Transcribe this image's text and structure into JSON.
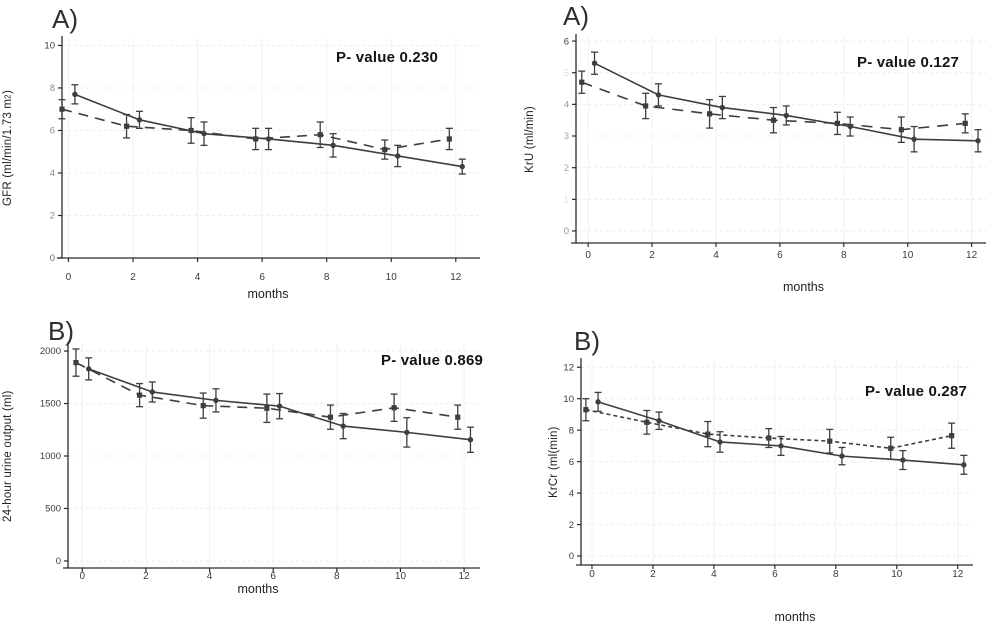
{
  "chart_data": [
    {
      "id": "gfr",
      "type": "line",
      "panel_label": "A)",
      "p_value": "P- value 0.230",
      "ylabel": {
        "text": "GFR (ml/min/1.73 m",
        "sup": "2",
        "after": ")"
      },
      "xlabel": "months",
      "xticks": [
        0,
        2,
        4,
        6,
        8,
        10,
        12
      ],
      "yticks": [
        10,
        8,
        6,
        4,
        2,
        0
      ],
      "ylim": [
        0,
        10
      ],
      "xlim_months": [
        0,
        12
      ],
      "grid": true,
      "legend": "none",
      "series": [
        {
          "name": "solid-line-group",
          "line_style": "solid",
          "marker": "circle",
          "x": [
            0.2,
            2.2,
            4.2,
            6.2,
            8.2,
            10.2,
            12.2
          ],
          "y": [
            7.7,
            6.5,
            5.85,
            5.6,
            5.3,
            4.8,
            4.3
          ],
          "err": [
            0.45,
            0.4,
            0.55,
            0.5,
            0.55,
            0.5,
            0.35
          ]
        },
        {
          "name": "dashed-line-group",
          "line_style": "dashed",
          "marker": "square",
          "x": [
            -0.2,
            1.8,
            3.8,
            5.8,
            7.8,
            9.8,
            11.8
          ],
          "y": [
            7.0,
            6.2,
            6.0,
            5.6,
            5.8,
            5.1,
            5.6
          ],
          "err": [
            0.45,
            0.55,
            0.6,
            0.5,
            0.6,
            0.45,
            0.5
          ]
        }
      ]
    },
    {
      "id": "kru",
      "type": "line",
      "panel_label": "A)",
      "p_value": "P- value 0.127",
      "ylabel": {
        "text": "KrU (ml/min)",
        "sup": "",
        "after": ""
      },
      "xlabel": "months",
      "xticks": [
        0,
        2,
        4,
        6,
        8,
        10,
        12
      ],
      "yticks": [
        6,
        5,
        4,
        3,
        2,
        1,
        0
      ],
      "ylim": [
        0,
        6
      ],
      "xlim_months": [
        0,
        12
      ],
      "grid": true,
      "legend": "none",
      "series": [
        {
          "name": "solid-line-group",
          "line_style": "solid",
          "marker": "circle",
          "x": [
            0.2,
            2.2,
            4.2,
            6.2,
            8.2,
            10.2,
            12.2
          ],
          "y": [
            5.3,
            4.3,
            3.9,
            3.65,
            3.3,
            2.9,
            2.85
          ],
          "err": [
            0.35,
            0.35,
            0.35,
            0.3,
            0.3,
            0.4,
            0.35
          ]
        },
        {
          "name": "dashed-line-group",
          "line_style": "dashed",
          "marker": "square",
          "x": [
            -0.2,
            1.8,
            3.8,
            5.8,
            7.8,
            9.8,
            11.8
          ],
          "y": [
            4.7,
            3.95,
            3.7,
            3.5,
            3.4,
            3.2,
            3.4
          ],
          "err": [
            0.35,
            0.4,
            0.45,
            0.4,
            0.35,
            0.4,
            0.3
          ]
        }
      ]
    },
    {
      "id": "urine-output",
      "type": "line",
      "panel_label": "B)",
      "p_value": "P- value 0.869",
      "ylabel": {
        "text": "24-hour urine output (ml)",
        "sup": "",
        "after": ""
      },
      "xlabel": "months",
      "xticks": [
        0,
        2,
        4,
        6,
        8,
        10,
        12
      ],
      "yticks": [
        2000,
        1500,
        1000,
        500,
        0
      ],
      "ylim": [
        0,
        2000
      ],
      "xlim_months": [
        0,
        12
      ],
      "grid": true,
      "legend": "none",
      "series": [
        {
          "name": "solid-line-group",
          "line_style": "solid",
          "marker": "circle",
          "x": [
            0.2,
            2.2,
            4.2,
            6.2,
            8.2,
            10.2,
            12.2
          ],
          "y": [
            1830,
            1610,
            1530,
            1475,
            1285,
            1225,
            1155
          ],
          "err": [
            105,
            95,
            110,
            120,
            120,
            140,
            120
          ]
        },
        {
          "name": "dashed-line-group",
          "line_style": "dashed",
          "marker": "square",
          "x": [
            -0.2,
            1.8,
            3.8,
            5.8,
            7.8,
            9.8,
            11.8
          ],
          "y": [
            1890,
            1580,
            1480,
            1455,
            1370,
            1460,
            1370
          ],
          "err": [
            130,
            110,
            120,
            135,
            115,
            130,
            115
          ]
        }
      ]
    },
    {
      "id": "krcr",
      "type": "line",
      "panel_label": "B)",
      "p_value": "P- value 0.287",
      "ylabel": {
        "text": "KrCr (ml(min)",
        "sup": "",
        "after": ""
      },
      "xlabel": "months",
      "xticks": [
        0,
        2,
        4,
        6,
        8,
        10,
        12
      ],
      "yticks": [
        12,
        10,
        8,
        6,
        4,
        2,
        0
      ],
      "ylim": [
        0,
        12
      ],
      "xlim_months": [
        0,
        12
      ],
      "grid": true,
      "legend": "none",
      "series": [
        {
          "name": "solid-line-group",
          "line_style": "solid",
          "marker": "circle",
          "x": [
            0.2,
            2.2,
            4.2,
            6.2,
            8.2,
            10.2,
            12.2
          ],
          "y": [
            9.8,
            8.6,
            7.25,
            7.0,
            6.35,
            6.1,
            5.8
          ],
          "err": [
            0.6,
            0.55,
            0.65,
            0.6,
            0.55,
            0.6,
            0.6
          ]
        },
        {
          "name": "dashed-line-group",
          "line_style": "dashed",
          "marker": "square",
          "x": [
            -0.2,
            1.8,
            3.8,
            5.8,
            7.8,
            9.8,
            11.8
          ],
          "y": [
            9.3,
            8.5,
            7.75,
            7.5,
            7.3,
            6.85,
            7.65
          ],
          "err": [
            0.7,
            0.75,
            0.8,
            0.6,
            0.75,
            0.7,
            0.8
          ]
        }
      ]
    }
  ]
}
